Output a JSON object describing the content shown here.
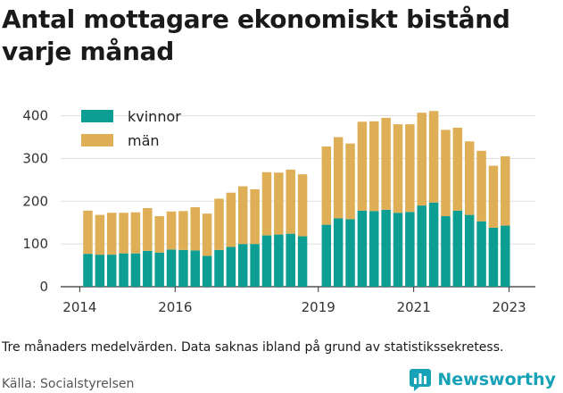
{
  "title_lines": [
    "Antal mottagare ekonomiskt bistånd",
    "varje månad"
  ],
  "note": "Tre månaders medelvärden. Data saknas ibland på grund av statistikssekretess.",
  "source": "Källa: Socialstyrelsen",
  "brand": {
    "name": "Newsworthy",
    "color": "#17a2b8",
    "icon": "chart-logo-icon"
  },
  "chart_data": {
    "type": "bar",
    "stacked": true,
    "x_unit": "year",
    "x_ticks": [
      2014,
      2016,
      2019,
      2021,
      2023
    ],
    "y_ticks": [
      0,
      100,
      200,
      300,
      400
    ],
    "ylim": [
      0,
      420
    ],
    "xlim": [
      2013.6,
      2023.55
    ],
    "grid": true,
    "legend_position": "top-left",
    "series": [
      {
        "name": "kvinnor",
        "color": "#0d9e93",
        "values": [
          77,
          75,
          75,
          78,
          78,
          84,
          80,
          87,
          86,
          85,
          72,
          86,
          93,
          100,
          100,
          120,
          122,
          124,
          118,
          145,
          160,
          158,
          178,
          177,
          180,
          173,
          175,
          190,
          197,
          165,
          178,
          168,
          153,
          138,
          143
        ]
      },
      {
        "name": "män",
        "color": "#deaf57",
        "values": [
          101,
          93,
          98,
          95,
          96,
          100,
          85,
          89,
          91,
          101,
          99,
          120,
          127,
          135,
          128,
          148,
          145,
          150,
          145,
          183,
          190,
          177,
          208,
          210,
          215,
          207,
          205,
          217,
          214,
          202,
          194,
          172,
          165,
          145,
          162
        ]
      }
    ],
    "x": [
      2014.17,
      2014.42,
      2014.67,
      2014.92,
      2015.17,
      2015.42,
      2015.67,
      2015.92,
      2016.17,
      2016.42,
      2016.67,
      2016.92,
      2017.17,
      2017.42,
      2017.67,
      2017.92,
      2018.17,
      2018.42,
      2018.67,
      2019.17,
      2019.42,
      2019.67,
      2019.92,
      2020.17,
      2020.42,
      2020.67,
      2020.92,
      2021.17,
      2021.42,
      2021.67,
      2021.92,
      2022.17,
      2022.42,
      2022.67,
      2022.92
    ]
  }
}
